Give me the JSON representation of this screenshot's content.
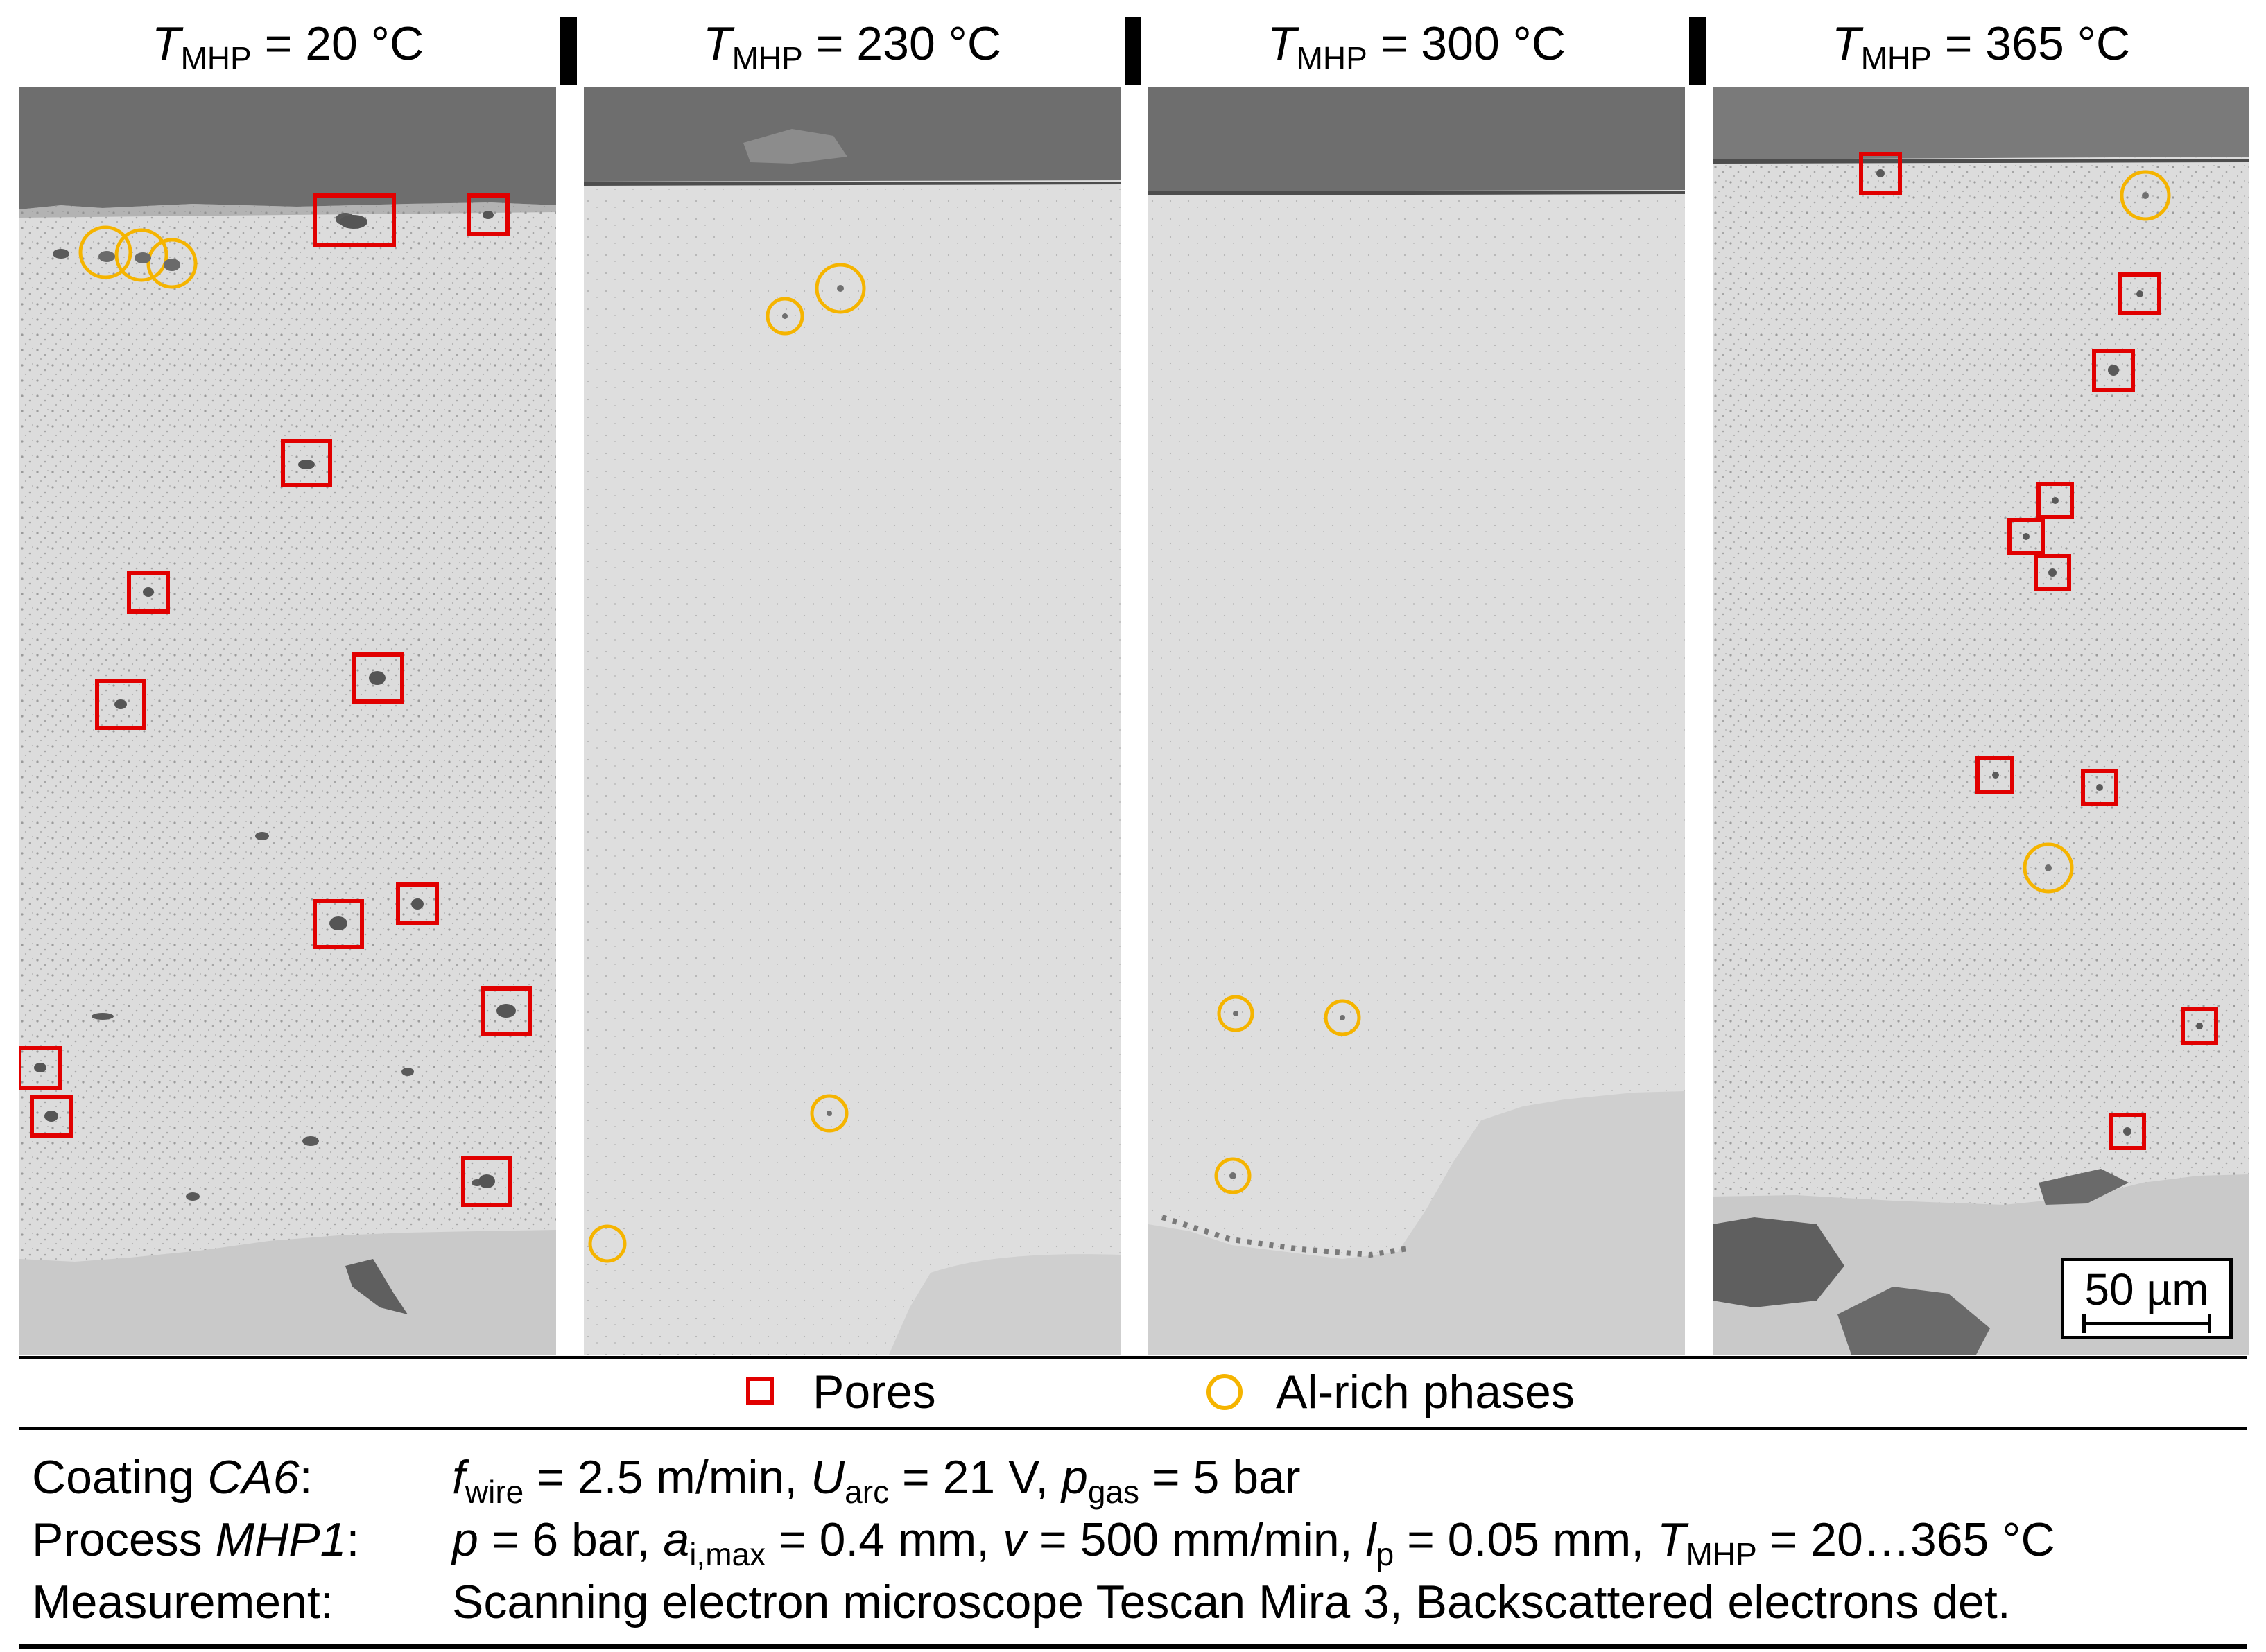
{
  "panels": [
    {
      "prefix": "T",
      "sub": "MHP",
      "value": " = 20 °C"
    },
    {
      "prefix": "T",
      "sub": "MHP",
      "value": " = 230 °C"
    },
    {
      "prefix": "T",
      "sub": "MHP",
      "value": " = 300 °C"
    },
    {
      "prefix": "T",
      "sub": "MHP",
      "value": " = 365 °C"
    }
  ],
  "legend": {
    "pores": "Pores",
    "al_rich": "Al-rich phases"
  },
  "scale_bar": "50 µm",
  "info": {
    "coating_label": "Coating ",
    "coating_name": "CA6",
    "colon": ":",
    "process_label": "Process ",
    "process_name": "MHP1",
    "measurement_label": "Measurement:",
    "coating_params": {
      "f": "f",
      "f_sub": "wire",
      "f_val": " = 2.5 m/min, ",
      "u": "U",
      "u_sub": "arc",
      "u_val": " = 21 V, ",
      "p": "p",
      "p_sub": "gas",
      "p_val": " = 5 bar"
    },
    "process_params": {
      "p": "p",
      "p_val": " = 6 bar, ",
      "a": "a",
      "a_sub": "i,max",
      "a_val": " = 0.4 mm, ",
      "v": "v",
      "v_val": " = 500 mm/min, ",
      "l": "l",
      "l_sub": "p",
      "l_val": " = 0.05 mm, ",
      "t": "T",
      "t_sub": "MHP",
      "t_val": " = 20…365 °C"
    },
    "measurement_text": "Scanning electron microscope Tescan Mira 3, Backscattered electrons det."
  },
  "colors": {
    "pore_box": "#e10000",
    "al_circle": "#f5b400",
    "coating": "#d9d9d9",
    "embedding": "#6e6e6e",
    "substrate": "#c9c9c9"
  }
}
